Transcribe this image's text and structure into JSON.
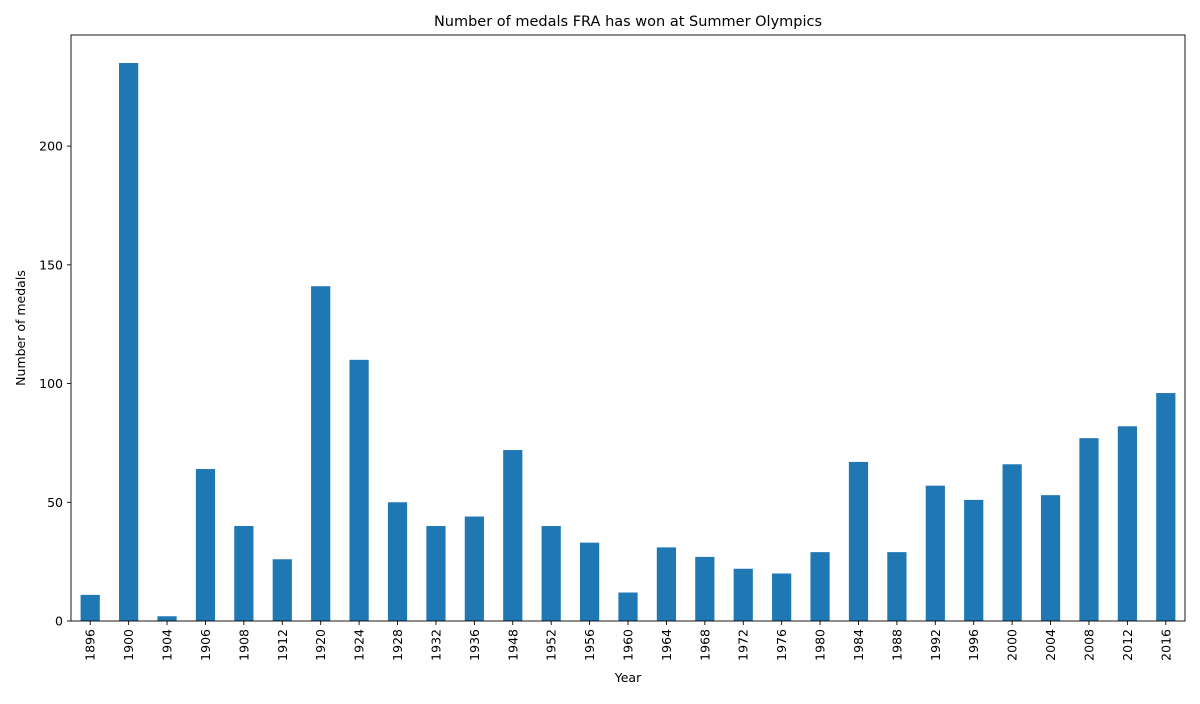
{
  "chart_data": {
    "type": "bar",
    "title": "Number of medals FRA has won at Summer Olympics",
    "xlabel": "Year",
    "ylabel": "Number of medals",
    "categories": [
      "1896",
      "1900",
      "1904",
      "1906",
      "1908",
      "1912",
      "1920",
      "1924",
      "1928",
      "1932",
      "1936",
      "1948",
      "1952",
      "1956",
      "1960",
      "1964",
      "1968",
      "1972",
      "1976",
      "1980",
      "1984",
      "1988",
      "1992",
      "1996",
      "2000",
      "2004",
      "2008",
      "2012",
      "2016"
    ],
    "values": [
      11,
      235,
      2,
      64,
      40,
      26,
      141,
      110,
      50,
      40,
      44,
      72,
      40,
      33,
      12,
      31,
      27,
      22,
      20,
      29,
      67,
      29,
      57,
      51,
      66,
      53,
      77,
      82,
      96
    ],
    "ylim": [
      0,
      246.8
    ],
    "yticks": [
      0,
      50,
      100,
      150,
      200
    ],
    "grid": false,
    "legend": "none",
    "bar_color": "#1f77b4"
  }
}
